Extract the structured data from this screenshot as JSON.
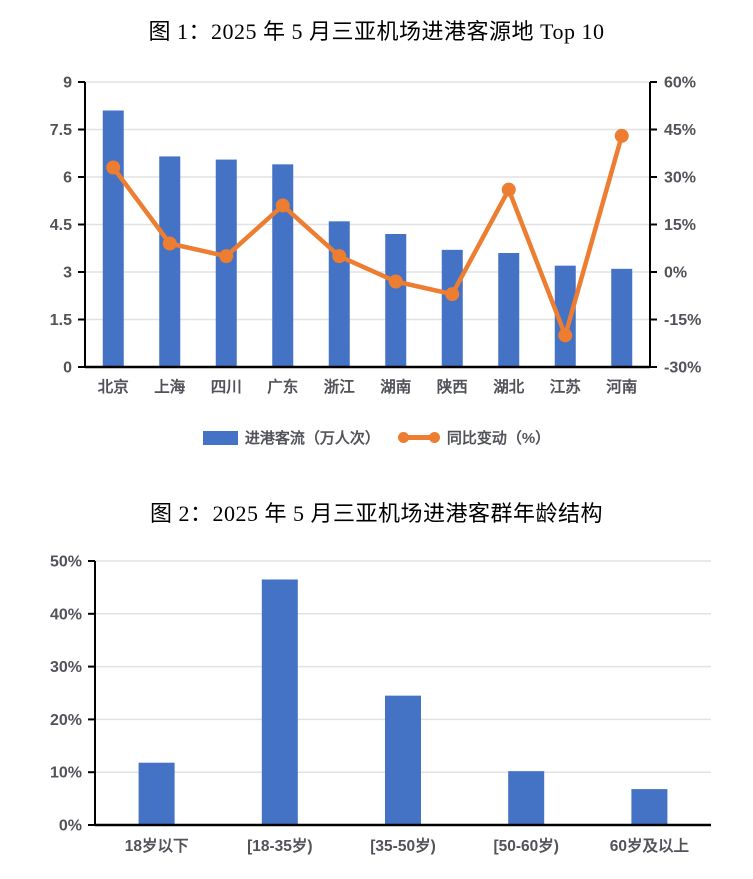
{
  "styles": {
    "background": "#FFFFFF",
    "bar_color": "#4472C4",
    "line_color": "#ED7D31",
    "axis_label_color": "#515359",
    "gridline_color": "#E2E2E2",
    "axis_line_color": "#000000",
    "title_color": "#000000"
  },
  "chart_data": [
    {
      "type": "combo-bar-line",
      "title": "图 1：2025 年 5 月三亚机场进港客源地 Top 10",
      "categories": [
        "北京",
        "上海",
        "四川",
        "广东",
        "浙江",
        "湖南",
        "陕西",
        "湖北",
        "江苏",
        "河南"
      ],
      "series": [
        {
          "name": "进港客流（万人次）",
          "type": "bar",
          "axis": "left",
          "values": [
            8.1,
            6.65,
            6.55,
            6.4,
            4.6,
            4.2,
            3.7,
            3.6,
            3.2,
            3.1
          ]
        },
        {
          "name": "同比变动（%）",
          "type": "line",
          "axis": "right",
          "values": [
            33,
            9,
            5,
            21,
            5,
            -3,
            -7,
            26,
            -20,
            43
          ]
        }
      ],
      "left_axis": {
        "min": 0,
        "max": 9,
        "tick_values": [
          9,
          7.5,
          6,
          4.5,
          3,
          1.5,
          0
        ],
        "tick_labels": [
          "9",
          "7.5",
          "6",
          "4.5",
          "3",
          "1.5",
          "0"
        ]
      },
      "right_axis": {
        "min": -30,
        "max": 60,
        "tick_values": [
          60,
          45,
          30,
          15,
          0,
          -15,
          -30
        ],
        "tick_labels": [
          "60%",
          "45%",
          "30%",
          "15%",
          "0%",
          "-15%",
          "-30%"
        ]
      },
      "grid": true,
      "legend_position": "bottom"
    },
    {
      "type": "bar",
      "title": "图 2：2025 年 5 月三亚机场进港客群年龄结构",
      "categories": [
        "18岁以下",
        "[18-35岁)",
        "[35-50岁)",
        "[50-60岁)",
        "60岁及以上"
      ],
      "values": [
        11.8,
        46.5,
        24.5,
        10.2,
        6.8
      ],
      "y_axis": {
        "min": 0,
        "max": 50,
        "tick_values": [
          0,
          10,
          20,
          30,
          40,
          50
        ],
        "tick_labels": [
          "0%",
          "10%",
          "20%",
          "30%",
          "40%",
          "50%"
        ]
      },
      "grid": true,
      "legend_position": "none"
    }
  ]
}
